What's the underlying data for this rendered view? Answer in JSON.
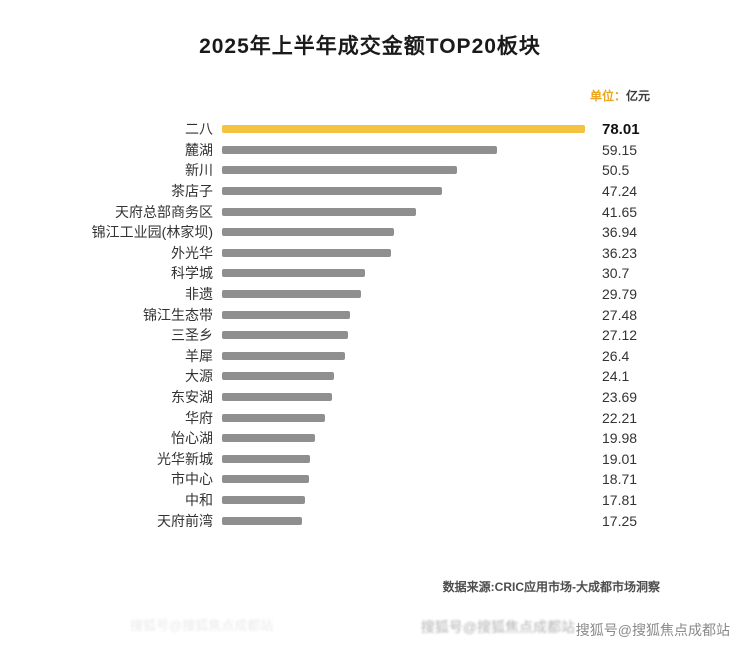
{
  "title": "2025年上半年成交金额TOP20板块",
  "unit_prefix": "单位：",
  "unit_suffix": "亿元",
  "footer": "数据来源:CRIC应用市场-大成都市场洞察",
  "watermark": "搜狐号@搜狐焦点成都站",
  "colors": {
    "highlight": "#F5C242",
    "bar": "#8F8F8F",
    "title": "#1A1A1A"
  },
  "chart_data": {
    "type": "bar",
    "orientation": "horizontal",
    "title": "2025年上半年成交金额TOP20板块",
    "unit": "亿元",
    "xlabel": "",
    "ylabel": "",
    "xlim": [
      0,
      78.01
    ],
    "grid": false,
    "legend": null,
    "highlight_index": 0,
    "categories": [
      "二八",
      "麓湖",
      "新川",
      "茶店子",
      "天府总部商务区",
      "锦江工业园(林家坝)",
      "外光华",
      "科学城",
      "非遗",
      "锦江生态带",
      "三圣乡",
      "羊犀",
      "大源",
      "东安湖",
      "华府",
      "怡心湖",
      "光华新城",
      "市中心",
      "中和",
      "天府前湾"
    ],
    "values": [
      78.01,
      59.15,
      50.5,
      47.24,
      41.65,
      36.94,
      36.23,
      30.7,
      29.79,
      27.48,
      27.12,
      26.4,
      24.1,
      23.69,
      22.21,
      19.98,
      19.01,
      18.71,
      17.81,
      17.25
    ]
  }
}
